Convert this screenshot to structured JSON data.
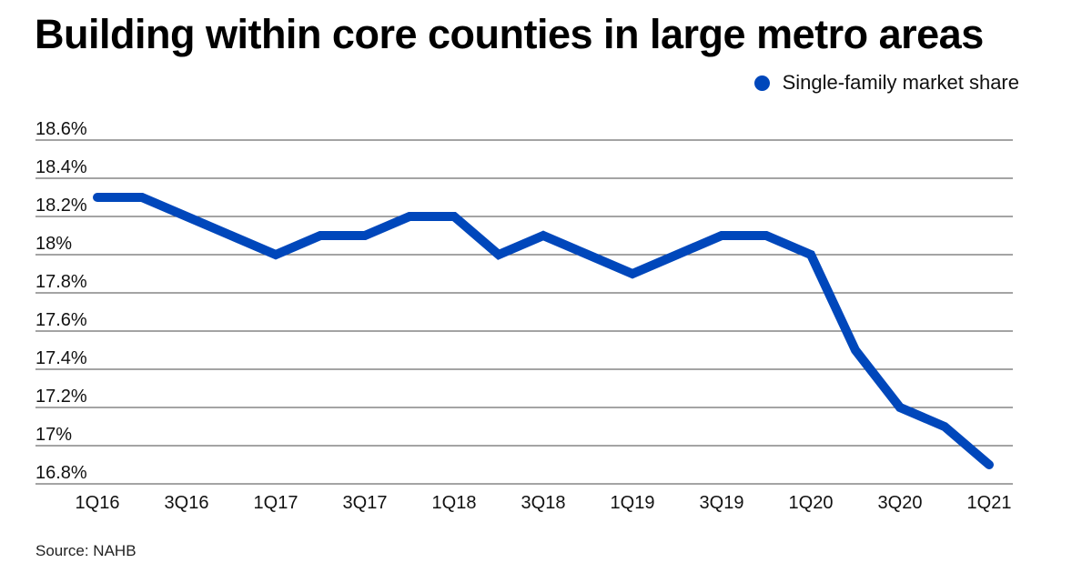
{
  "chart_data": {
    "type": "line",
    "title": "Building within core counties in large metro areas",
    "xlabel": "",
    "ylabel": "",
    "x": [
      "1Q16",
      "2Q16",
      "3Q16",
      "4Q16",
      "1Q17",
      "2Q17",
      "3Q17",
      "4Q17",
      "1Q18",
      "2Q18",
      "3Q18",
      "4Q18",
      "1Q19",
      "2Q19",
      "3Q19",
      "4Q19",
      "1Q20",
      "2Q20",
      "3Q20",
      "4Q20",
      "1Q21"
    ],
    "x_tick_labels": [
      "1Q16",
      "3Q16",
      "1Q17",
      "3Q17",
      "1Q18",
      "3Q18",
      "1Q19",
      "3Q19",
      "1Q20",
      "3Q20",
      "1Q21"
    ],
    "series": [
      {
        "name": "Single-family market share",
        "color": "#0047BB",
        "values": [
          18.3,
          18.3,
          18.2,
          18.1,
          18.0,
          18.1,
          18.1,
          18.2,
          18.2,
          18.0,
          18.1,
          18.0,
          17.9,
          18.0,
          18.1,
          18.1,
          18.0,
          17.5,
          17.2,
          17.1,
          16.9
        ]
      }
    ],
    "ylim": [
      16.8,
      18.6
    ],
    "y_ticks": [
      18.6,
      18.4,
      18.2,
      18.0,
      17.8,
      17.6,
      17.4,
      17.2,
      17.0,
      16.8
    ],
    "y_tick_labels": [
      "18.6%",
      "18.4%",
      "18.2%",
      "18%",
      "17.8%",
      "17.6%",
      "17.4%",
      "17.2%",
      "17%",
      "16.8%"
    ],
    "grid": true,
    "legend_position": "top-right",
    "source": "Source: NAHB"
  }
}
